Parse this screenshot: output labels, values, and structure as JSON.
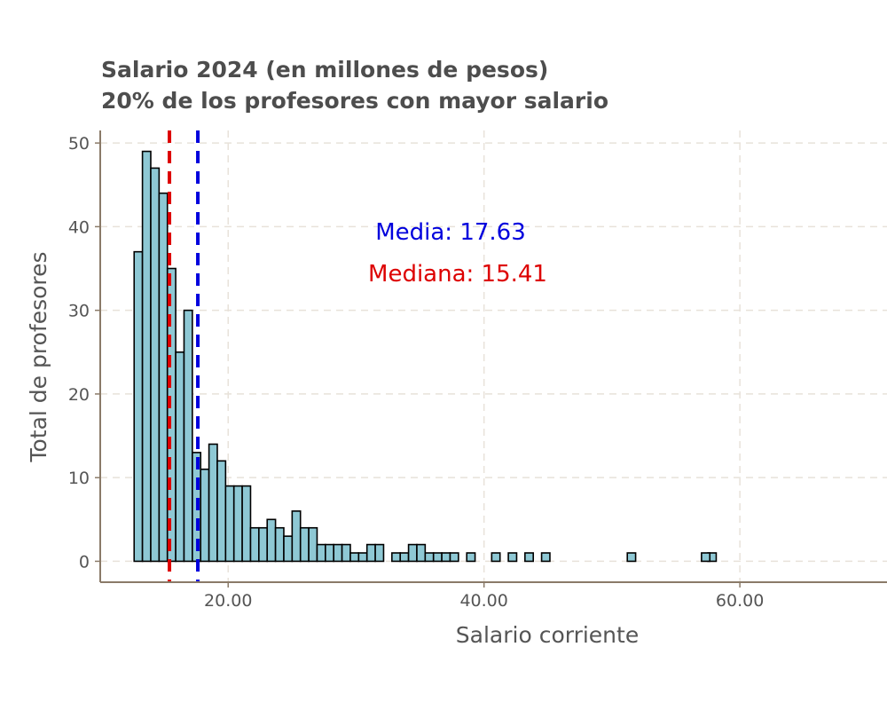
{
  "chart_data": {
    "type": "bar",
    "title": "Salario 2024 (en millones de pesos)",
    "subtitle": "20% de los profesores con mayor salario",
    "xlabel": "Salario corriente",
    "ylabel": "Total de profesores",
    "xlim": [
      10,
      71.5
    ],
    "ylim": [
      -2.5,
      51.5
    ],
    "x_ticks": [
      20,
      40,
      60
    ],
    "x_tick_labels": [
      "20.00",
      "40.00",
      "60.00"
    ],
    "y_ticks": [
      0,
      10,
      20,
      30,
      40,
      50
    ],
    "y_tick_labels": [
      "0",
      "10",
      "20",
      "30",
      "40",
      "50"
    ],
    "grid": true,
    "bin_start": 12.65,
    "bin_width": 0.65,
    "counts": [
      37,
      49,
      47,
      44,
      35,
      25,
      30,
      13,
      11,
      14,
      12,
      9,
      9,
      9,
      4,
      4,
      5,
      4,
      3,
      6,
      4,
      4,
      2,
      2,
      2,
      2,
      1,
      1,
      2,
      2,
      0,
      1,
      1,
      2,
      2,
      1,
      1,
      1,
      1,
      0,
      1,
      0,
      0,
      1,
      0,
      1,
      0,
      1,
      0,
      1,
      0,
      0,
      0,
      0,
      0,
      0,
      0,
      0,
      0,
      0,
      0,
      0,
      0,
      0,
      0,
      0,
      0,
      0,
      0,
      1,
      0,
      0,
      0,
      0,
      0,
      0,
      0,
      0,
      0,
      0,
      0,
      0,
      0,
      0,
      0,
      0,
      0,
      0,
      0,
      0,
      0,
      0,
      0,
      0,
      0,
      0,
      0,
      0,
      0,
      0,
      0,
      0,
      0,
      0,
      0,
      0,
      0,
      0,
      0,
      0,
      0,
      0,
      0,
      0,
      0,
      0,
      0,
      0,
      0,
      0,
      0,
      0,
      0,
      0,
      0,
      0,
      0,
      0,
      0,
      0,
      0,
      0,
      0,
      0,
      0,
      0,
      0,
      0,
      0,
      0,
      0,
      0
    ],
    "bar_fill": "#8ec8d4",
    "bar_stroke": "#000000",
    "extra_bars": [
      {
        "x_start": 51.2,
        "count": 1
      },
      {
        "x_start": 57.0,
        "count": 1
      }
    ],
    "reference_lines": [
      {
        "name": "Media",
        "value": 17.63,
        "color": "#0000dd",
        "label": "Media: 17.63"
      },
      {
        "name": "Mediana",
        "value": 15.41,
        "color": "#dd0000",
        "label": "Mediana: 15.41"
      }
    ]
  }
}
